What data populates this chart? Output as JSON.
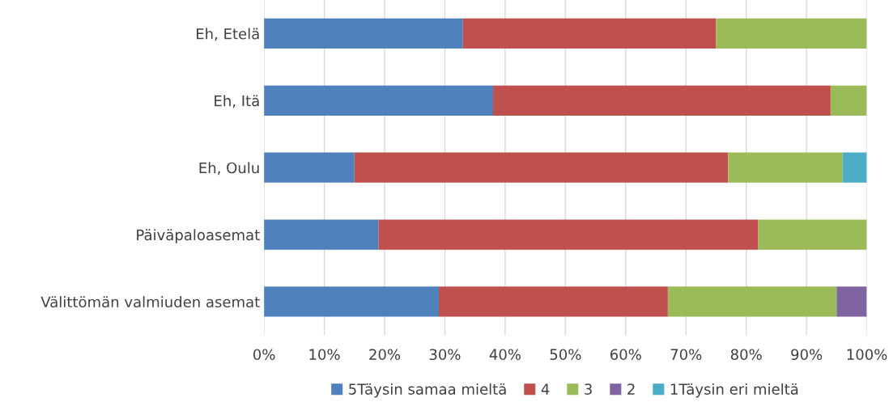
{
  "chart_data": {
    "type": "bar",
    "orientation": "horizontal",
    "stacked": true,
    "grid": "x",
    "legend": "bottom",
    "categories": [
      "Eh, Etelä",
      "Eh, Itä",
      "Eh, Oulu",
      "Päiväpaloasemat",
      "Välittömän valmiuden asemat"
    ],
    "series": [
      {
        "name": "5Täysin samaa mieltä",
        "color": "#4f81bd",
        "values": [
          33,
          38,
          15,
          19,
          29
        ]
      },
      {
        "name": "4",
        "color": "#c0504d",
        "values": [
          42,
          56,
          62,
          63,
          38
        ]
      },
      {
        "name": "3",
        "color": "#9bbb59",
        "values": [
          25,
          6,
          19,
          18,
          28
        ]
      },
      {
        "name": "2",
        "color": "#8064a2",
        "values": [
          0,
          0,
          0,
          0,
          5
        ]
      },
      {
        "name": "1Täysin eri mieltä",
        "color": "#4bacc6",
        "values": [
          0,
          0,
          4,
          0,
          0
        ]
      }
    ],
    "xlim": [
      0,
      100
    ],
    "xticks": [
      {
        "value": 0,
        "label": "0%"
      },
      {
        "value": 10,
        "label": "10%"
      },
      {
        "value": 20,
        "label": "20%"
      },
      {
        "value": 30,
        "label": "30%"
      },
      {
        "value": 40,
        "label": "40%"
      },
      {
        "value": 50,
        "label": "50%"
      },
      {
        "value": 60,
        "label": "60%"
      },
      {
        "value": 70,
        "label": "70%"
      },
      {
        "value": 80,
        "label": "80%"
      },
      {
        "value": 90,
        "label": "90%"
      },
      {
        "value": 100,
        "label": "100%"
      }
    ]
  }
}
